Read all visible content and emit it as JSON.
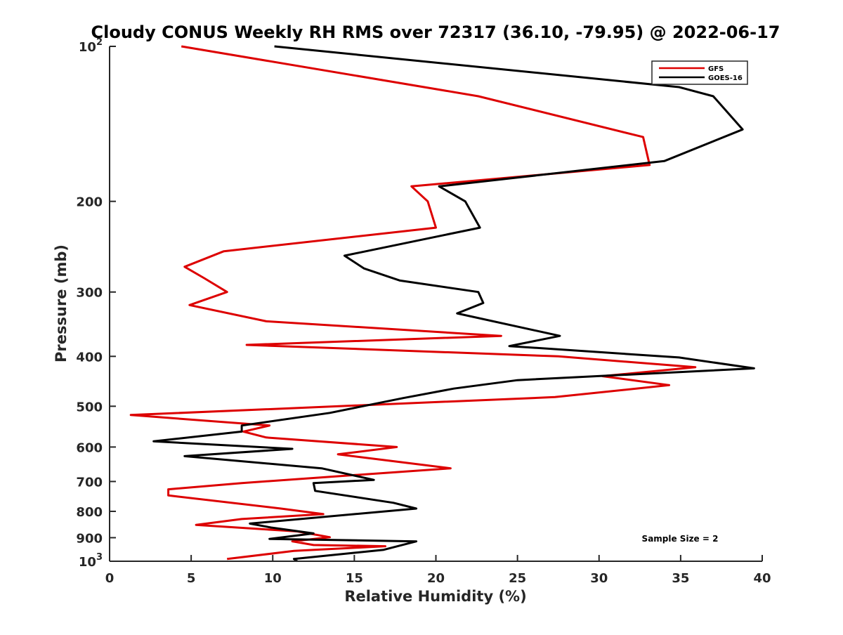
{
  "figure": {
    "background": "#ffffff",
    "axes_color": "#262626",
    "annotation": "Sample Size = 2"
  },
  "chart_data": {
    "type": "line",
    "title": "Cloudy CONUS Weekly RH RMS over 72317 (36.10, -79.95) @ 2022-06-17",
    "xlabel": "Relative Humidity (%)",
    "ylabel": "Pressure (mb)",
    "xlim": [
      0,
      40
    ],
    "ylim": [
      100,
      1000
    ],
    "y_scale": "log",
    "y_reversed": true,
    "grid": false,
    "legend_position": "top-right",
    "x_ticks": [
      {
        "value": 0,
        "label": "0"
      },
      {
        "value": 5,
        "label": "5"
      },
      {
        "value": 10,
        "label": "10"
      },
      {
        "value": 15,
        "label": "15"
      },
      {
        "value": 20,
        "label": "20"
      },
      {
        "value": 25,
        "label": "25"
      },
      {
        "value": 30,
        "label": "30"
      },
      {
        "value": 35,
        "label": "35"
      },
      {
        "value": 40,
        "label": "40"
      }
    ],
    "y_ticks": [
      {
        "value": 100,
        "base": "10",
        "exp": "2"
      },
      {
        "value": 200,
        "label": "200"
      },
      {
        "value": 300,
        "label": "300"
      },
      {
        "value": 400,
        "label": "400"
      },
      {
        "value": 500,
        "label": "500"
      },
      {
        "value": 600,
        "label": "600"
      },
      {
        "value": 700,
        "label": "700"
      },
      {
        "value": 800,
        "label": "800"
      },
      {
        "value": 900,
        "label": "900"
      },
      {
        "value": 1000,
        "base": "10",
        "exp": "3"
      }
    ],
    "series": [
      {
        "name": "GFS",
        "color": "#dd0000",
        "points": [
          [
            4.4,
            100
          ],
          [
            22.6,
            125
          ],
          [
            32.7,
            150
          ],
          [
            33.1,
            170
          ],
          [
            18.5,
            187
          ],
          [
            19.5,
            200
          ],
          [
            20.0,
            225
          ],
          [
            7.0,
            250
          ],
          [
            4.6,
            268
          ],
          [
            5.8,
            282
          ],
          [
            7.2,
            300
          ],
          [
            4.9,
            318
          ],
          [
            9.6,
            342
          ],
          [
            24.0,
            365
          ],
          [
            8.4,
            380
          ],
          [
            27.5,
            400
          ],
          [
            35.9,
            420
          ],
          [
            30.2,
            437
          ],
          [
            34.3,
            455
          ],
          [
            27.3,
            480
          ],
          [
            1.3,
            520
          ],
          [
            9.8,
            545
          ],
          [
            8.2,
            560
          ],
          [
            9.6,
            575
          ],
          [
            17.6,
            600
          ],
          [
            14.0,
            620
          ],
          [
            17.5,
            640
          ],
          [
            20.9,
            660
          ],
          [
            8.1,
            705
          ],
          [
            3.6,
            725
          ],
          [
            3.6,
            745
          ],
          [
            10.5,
            790
          ],
          [
            13.1,
            810
          ],
          [
            8.1,
            828
          ],
          [
            5.3,
            850
          ],
          [
            11.5,
            875
          ],
          [
            13.5,
            898
          ],
          [
            11.2,
            915
          ],
          [
            12.5,
            930
          ],
          [
            16.9,
            935
          ],
          [
            11.3,
            955
          ],
          [
            7.2,
            990
          ]
        ]
      },
      {
        "name": "GOES-16",
        "color": "#000000",
        "points": [
          [
            10.1,
            100
          ],
          [
            34.9,
            120
          ],
          [
            37.0,
            125
          ],
          [
            38.8,
            145
          ],
          [
            34.0,
            167
          ],
          [
            20.2,
            187
          ],
          [
            21.8,
            200
          ],
          [
            22.7,
            225
          ],
          [
            14.4,
            255
          ],
          [
            15.6,
            270
          ],
          [
            17.8,
            285
          ],
          [
            22.6,
            300
          ],
          [
            22.9,
            315
          ],
          [
            21.3,
            330
          ],
          [
            27.6,
            365
          ],
          [
            24.5,
            382
          ],
          [
            34.9,
            402
          ],
          [
            39.5,
            422
          ],
          [
            25.0,
            445
          ],
          [
            21.1,
            462
          ],
          [
            18.0,
            482
          ],
          [
            13.5,
            515
          ],
          [
            8.1,
            545
          ],
          [
            8.1,
            560
          ],
          [
            2.7,
            585
          ],
          [
            11.2,
            605
          ],
          [
            4.6,
            625
          ],
          [
            13.0,
            660
          ],
          [
            16.2,
            695
          ],
          [
            12.5,
            705
          ],
          [
            12.6,
            730
          ],
          [
            17.4,
            770
          ],
          [
            18.8,
            790
          ],
          [
            8.6,
            845
          ],
          [
            9.9,
            860
          ],
          [
            12.5,
            883
          ],
          [
            9.8,
            905
          ],
          [
            18.8,
            915
          ],
          [
            16.8,
            950
          ],
          [
            11.3,
            990
          ],
          [
            11.5,
            1000
          ]
        ]
      }
    ]
  }
}
